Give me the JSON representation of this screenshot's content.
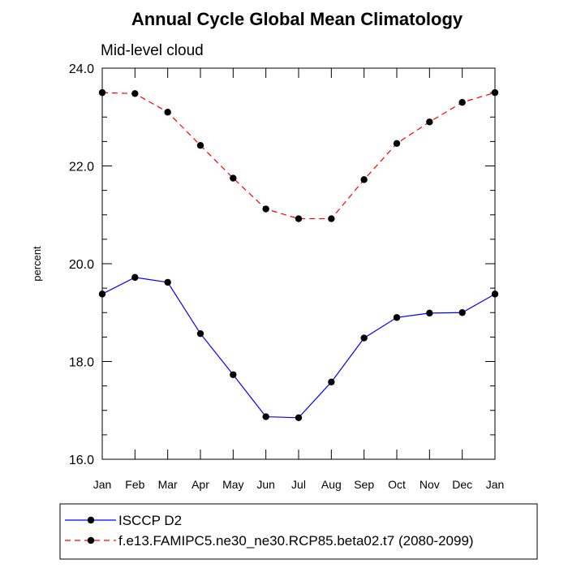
{
  "chart_data": {
    "type": "line",
    "title": "Annual Cycle Global Mean Climatology",
    "subtitle": "Mid-level cloud",
    "xlabel": "",
    "ylabel": "percent",
    "categories": [
      "Jan",
      "Feb",
      "Mar",
      "Apr",
      "May",
      "Jun",
      "Jul",
      "Aug",
      "Sep",
      "Oct",
      "Nov",
      "Dec",
      "Jan"
    ],
    "ylim": [
      16.0,
      24.0
    ],
    "yticks": [
      16.0,
      18.0,
      20.0,
      22.0,
      24.0
    ],
    "ytick_labels": [
      "16.0",
      "18.0",
      "20.0",
      "22.0",
      "24.0"
    ],
    "series": [
      {
        "name": "ISCCP D2",
        "color": "#0000ff",
        "dash": "solid",
        "values": [
          19.38,
          19.72,
          19.62,
          18.57,
          17.73,
          16.87,
          16.85,
          17.58,
          18.48,
          18.9,
          18.99,
          19.0,
          19.38
        ]
      },
      {
        "name": "f.e13.FAMIPC5.ne30_ne30.RCP85.beta02.t7 (2080-2099)",
        "color": "#ff0000",
        "dash": "dashed",
        "values": [
          23.5,
          23.48,
          23.1,
          22.42,
          21.75,
          21.12,
          20.92,
          20.92,
          21.72,
          22.46,
          22.9,
          23.3,
          23.5
        ]
      }
    ],
    "legend_position": "bottom",
    "marker_color": "#000000"
  }
}
